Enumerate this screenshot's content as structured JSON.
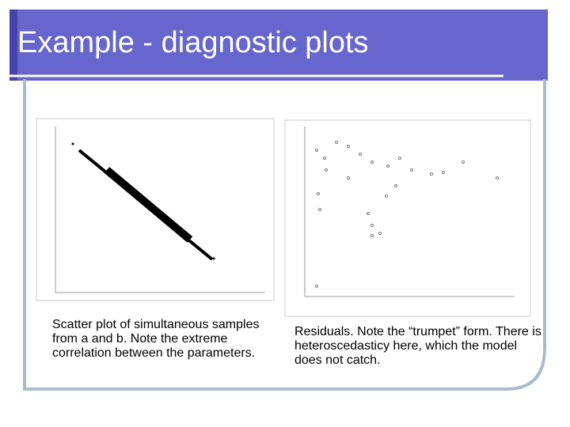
{
  "header": {
    "title": "Example - diagnostic plots"
  },
  "captions": [
    "Scatter plot of simultaneous samples from a and b. Note the extreme correlation between the parameters.",
    "Residuals. Note the “trumpet” form. There is heteroscedasticy here, which the model does not catch."
  ]
}
